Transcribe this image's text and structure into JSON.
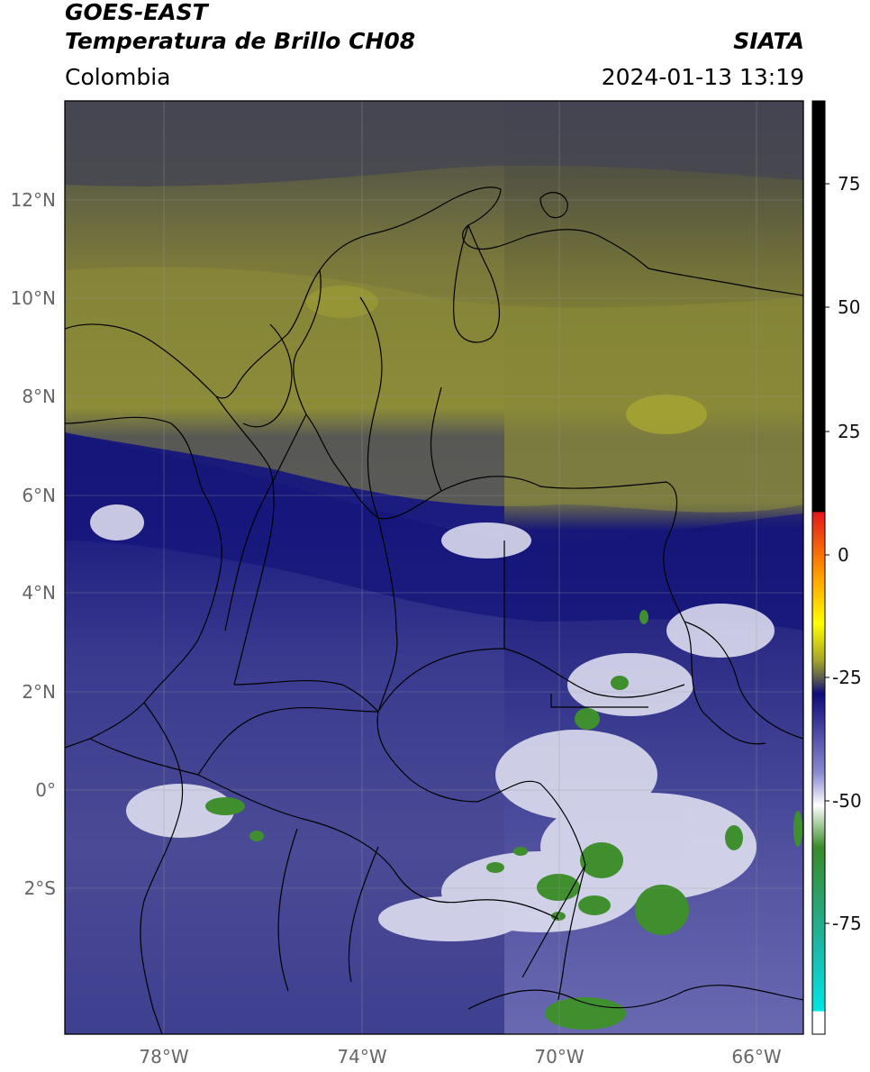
{
  "header": {
    "title_line1": "GOES-EAST",
    "title_line2": "Temperatura de Brillo CH08",
    "brand": "SIATA",
    "region": "Colombia",
    "datetime": "2024-01-13 13:19"
  },
  "map": {
    "lat_labels": [
      "12°N",
      "10°N",
      "8°N",
      "6°N",
      "4°N",
      "2°N",
      "0°",
      "2°S"
    ],
    "lon_labels": [
      "78°W",
      "74°W",
      "70°W",
      "66°W"
    ]
  },
  "colorbar": {
    "tick_labels": [
      "75",
      "50",
      "25",
      "0",
      "-25",
      "-50",
      "-75"
    ],
    "colors": {
      "hot": "#000000",
      "red": "#e31a1c",
      "orange": "#ff8c00",
      "yellow": "#ffff00",
      "olive": "#a3a32a",
      "gray": "#555555",
      "navy": "#0d0d7a",
      "lavender": "#8a8ad0",
      "white": "#ffffff",
      "green": "#3a8a2a",
      "teal": "#1fb5a0",
      "cyan": "#00e5e5"
    }
  }
}
